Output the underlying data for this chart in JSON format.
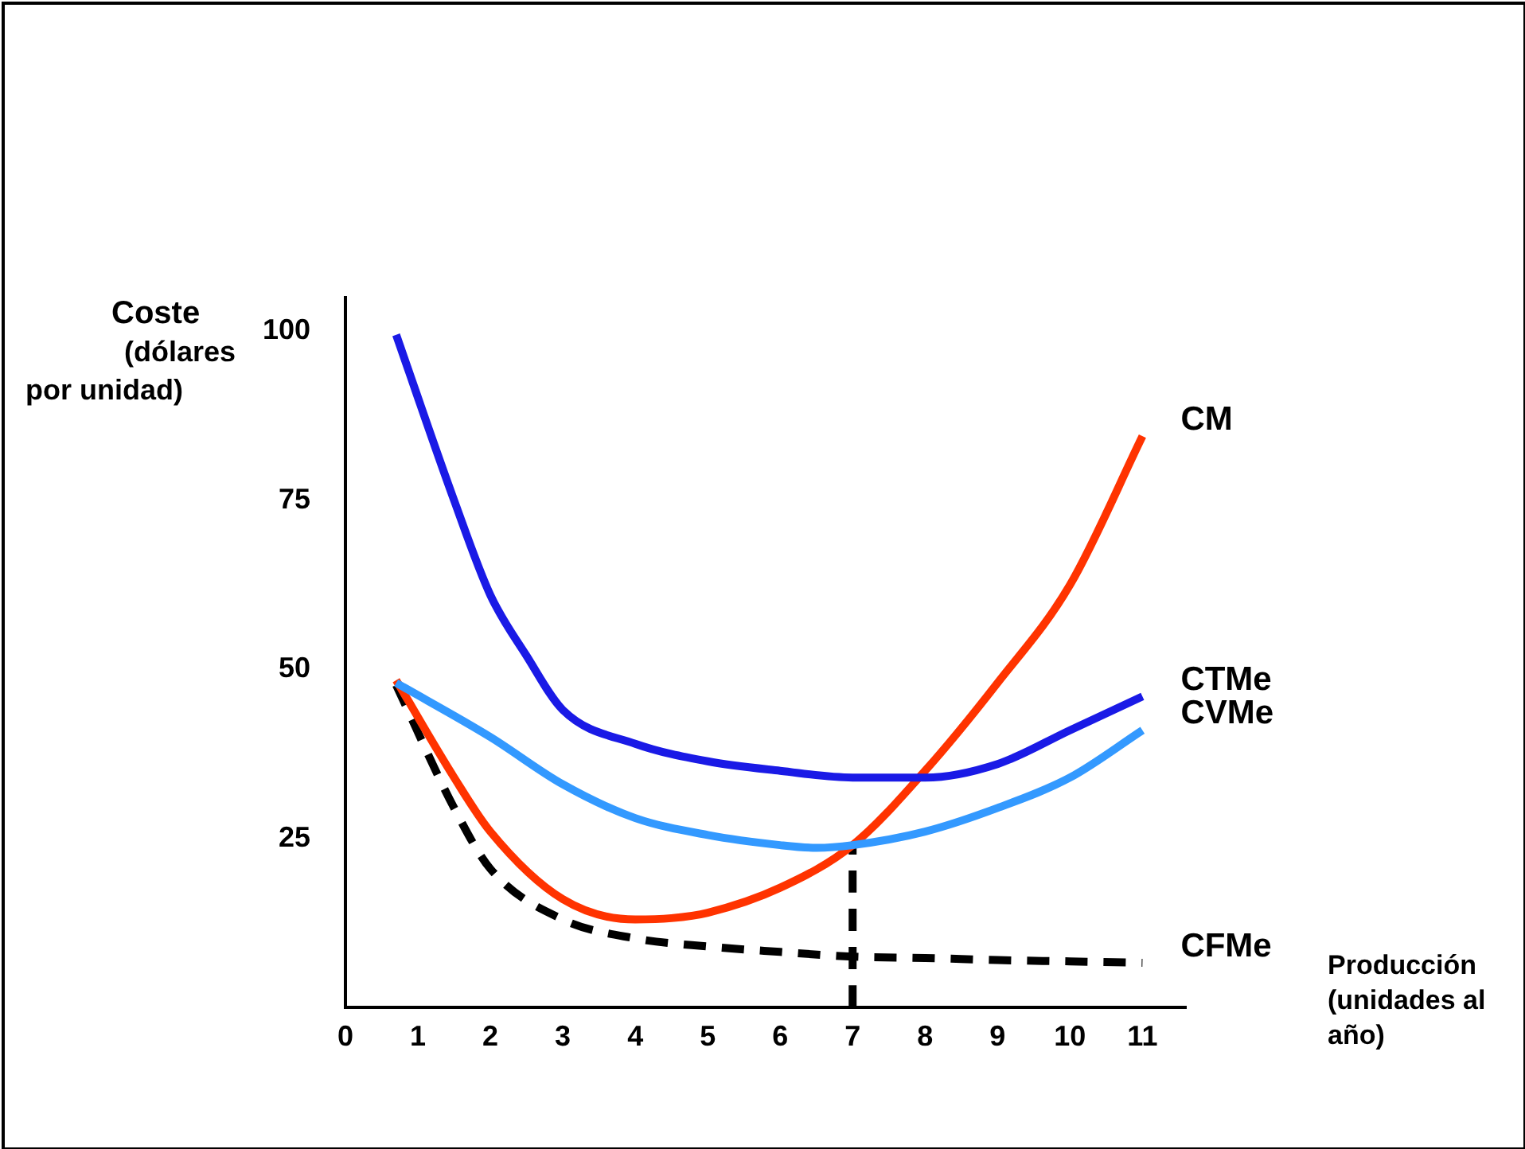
{
  "chart_data": {
    "type": "line",
    "annotations": [
      "Producción (unidades al año)"
    ],
    "ylabel": "Coste (dólares por unidad)",
    "xlim": [
      0,
      11.6
    ],
    "ylim": [
      0,
      105
    ],
    "xticks": [
      0,
      1,
      2,
      3,
      4,
      5,
      6,
      7,
      8,
      9,
      10,
      11
    ],
    "yticks": [
      25,
      50,
      75,
      100
    ],
    "grid": false,
    "legend": false,
    "marker": "none",
    "series": [
      {
        "name": "CTMe",
        "color": "#1a1ae6",
        "x": [
          0.7,
          1.5,
          2,
          2.5,
          3,
          4,
          5,
          6,
          7,
          8,
          9,
          10,
          11
        ],
        "values": [
          99.5,
          75,
          61,
          52,
          44,
          39,
          36.4,
          35,
          34,
          34,
          36,
          41,
          46
        ]
      },
      {
        "name": "CVMe",
        "color": "#3399ff",
        "x": [
          0.7,
          2,
          3,
          4,
          5,
          6,
          6.5,
          7,
          8,
          9,
          10,
          11
        ],
        "values": [
          48,
          40,
          33,
          28,
          25.5,
          24,
          23.6,
          24,
          26,
          29.5,
          34,
          41
        ]
      },
      {
        "name": "CM",
        "color": "#ff3300",
        "x": [
          0.7,
          1.5,
          2,
          3,
          4,
          4.5,
          5,
          6,
          7,
          8,
          9,
          10,
          11
        ],
        "values": [
          48.4,
          34,
          26,
          16,
          13,
          13.2,
          14,
          17.7,
          24,
          35,
          48,
          62.5,
          84.5
        ]
      },
      {
        "name": "CFMe",
        "color": "#000000",
        "line_style": "dashed",
        "x": [
          0.7,
          1.5,
          2,
          3,
          4,
          5,
          6,
          7,
          8,
          9,
          10,
          11
        ],
        "values": [
          47.7,
          29.5,
          20.5,
          13,
          10.2,
          9,
          8.2,
          7.5,
          7.3,
          7,
          6.8,
          6.6
        ]
      },
      {
        "color": "#000000",
        "line_style": "dashed",
        "x": [
          7,
          7
        ],
        "values": [
          0,
          24
        ]
      }
    ]
  }
}
